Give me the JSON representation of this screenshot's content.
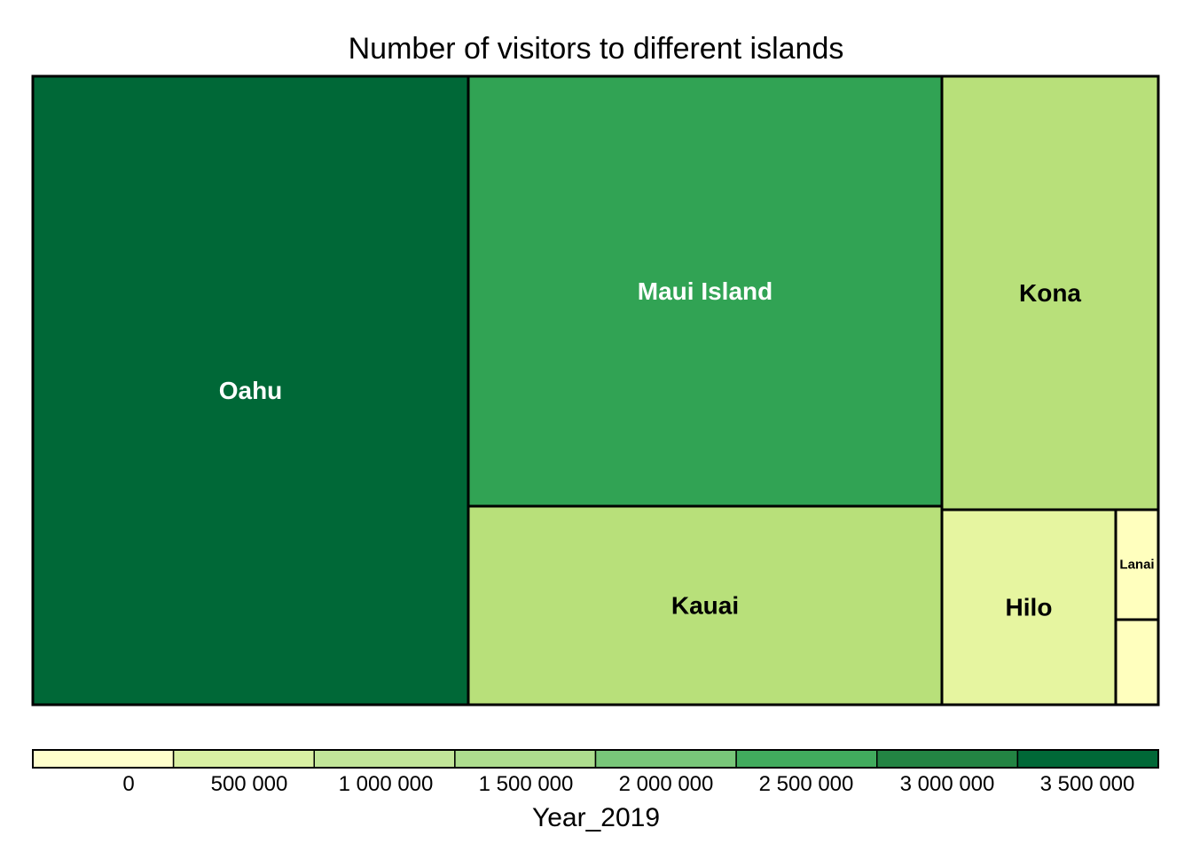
{
  "chart_data": {
    "type": "treemap",
    "title": "Number of visitors to different islands",
    "legend_title": "Year_2019",
    "items": [
      {
        "name": "Oahu",
        "value": 3500000,
        "color": "#006837",
        "label_color": "#ffffff"
      },
      {
        "name": "Maui Island",
        "value": 2500000,
        "color": "#31a354",
        "label_color": "#ffffff"
      },
      {
        "name": "Kauai",
        "value": 1300000,
        "color": "#b8e07a",
        "label_color": "#000000"
      },
      {
        "name": "Kona",
        "value": 1300000,
        "color": "#b8e07a",
        "label_color": "#000000"
      },
      {
        "name": "Hilo",
        "value": 430000,
        "color": "#e6f5a0",
        "label_color": "#000000"
      },
      {
        "name": "Lanai",
        "value": 50000,
        "color": "#ffffbe",
        "label_color": "#000000"
      },
      {
        "name": "",
        "value": 50000,
        "color": "#ffffbe",
        "label_color": "#000000"
      }
    ],
    "legend": {
      "colors": [
        "#ffffcc",
        "#d9f0a3",
        "#c2e699",
        "#addd8e",
        "#78c679",
        "#41ab5d",
        "#238443",
        "#006837"
      ],
      "tick_labels": [
        "0",
        "500 000",
        "1 000 000",
        "1 500 000",
        "2 000 000",
        "2 500 000",
        "3 000 000",
        "3 500 000"
      ]
    }
  }
}
